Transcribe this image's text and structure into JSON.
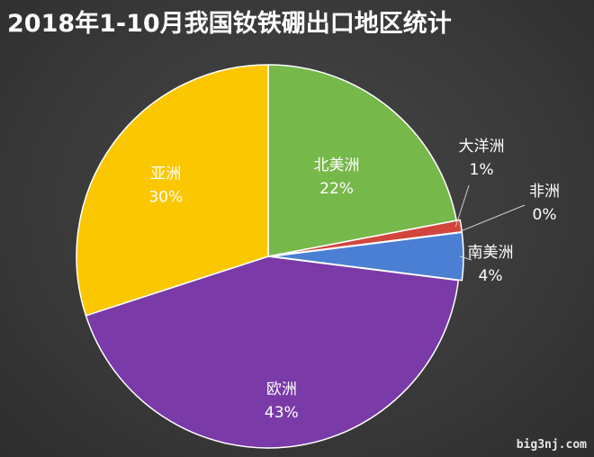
{
  "title": "2018年1-10月我国钕铁硼出口地区统计",
  "watermark": "big3nj.com",
  "chart_data": {
    "type": "pie",
    "title": "2018年1-10月我国钕铁硼出口地区统计",
    "slices": [
      {
        "name": "北美洲",
        "value": 22,
        "label": "22%",
        "color": "#77b84a"
      },
      {
        "name": "大洋洲",
        "value": 1,
        "label": "1%",
        "color": "#d2453d"
      },
      {
        "name": "非洲",
        "value": 0,
        "label": "0%",
        "color": "#ffffff"
      },
      {
        "name": "南美洲",
        "value": 4,
        "label": "4%",
        "color": "#4a7fd4"
      },
      {
        "name": "欧洲",
        "value": 43,
        "label": "43%",
        "color": "#7a3aa8"
      },
      {
        "name": "亚洲",
        "value": 30,
        "label": "30%",
        "color": "#fbc700"
      }
    ],
    "legend": "none"
  }
}
